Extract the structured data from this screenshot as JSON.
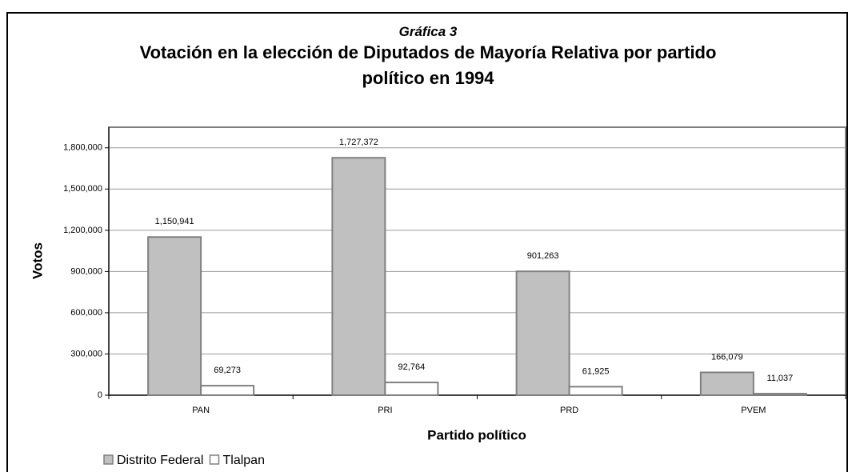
{
  "chart_data": {
    "type": "bar",
    "subtitle": "Gráfica 3",
    "title": "Votación en la elección de Diputados de Mayoría Relativa por partido político en 1994",
    "x_label": "Partido político",
    "y_label": "Votos",
    "categories": [
      "PAN",
      "PRI",
      "PRD",
      "PVEM"
    ],
    "series": [
      {
        "name": "Distrito Federal",
        "color": "#c0c0c0",
        "values": [
          1150941,
          1727372,
          901263,
          166079
        ],
        "value_labels": [
          "1,150,941",
          "1,727,372",
          "901,263",
          "166,079"
        ]
      },
      {
        "name": "Tlalpan",
        "color": "#ffffff",
        "values": [
          69273,
          92764,
          61925,
          11037
        ],
        "value_labels": [
          "69,273",
          "92,764",
          "61,925",
          "11,037"
        ]
      }
    ],
    "ylim": [
      0,
      1950000
    ],
    "yticks": [
      0,
      {
        "value": 300000,
        "label": "300,000"
      },
      {
        "value": 600000,
        "label": "600,000"
      },
      {
        "value": 900000,
        "label": "900,000"
      },
      {
        "value": 1200000,
        "label": "1,200,000"
      },
      {
        "value": 1500000,
        "label": "1,500,000"
      },
      {
        "value": 1800000,
        "label": "1,800,000"
      }
    ],
    "grid": true,
    "legend": "bottom-left"
  }
}
